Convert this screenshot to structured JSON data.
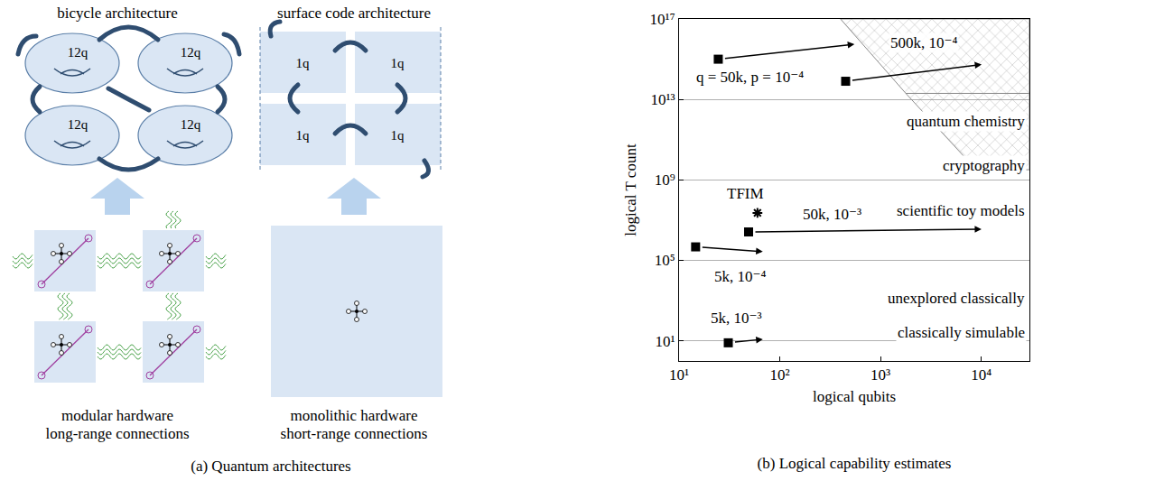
{
  "diagram": {
    "caption": "(a) Quantum architectures",
    "columns": [
      {
        "title": "bicycle architecture",
        "module_label": "12q",
        "hardware": [
          "modular hardware",
          "long-range connections"
        ]
      },
      {
        "title": "surface code architecture",
        "module_label": "1q",
        "hardware": [
          "monolithic hardware",
          "short-range connections"
        ]
      }
    ]
  },
  "chart_data": {
    "type": "scatter",
    "caption": "(b) Logical capability estimates",
    "x_label": "logical qubits",
    "y_label": "logical T count",
    "log": true,
    "grid": "y",
    "xlim": [
      10,
      30000
    ],
    "ylim": [
      1,
      1e+17
    ],
    "xticks": [
      {
        "value": 10,
        "label": "10¹"
      },
      {
        "value": 100,
        "label": "10²"
      },
      {
        "value": 1000,
        "label": "10³"
      },
      {
        "value": 10000,
        "label": "10⁴"
      }
    ],
    "yticks": [
      {
        "value": 10,
        "label": "10¹"
      },
      {
        "value": 100000,
        "label": "10⁵"
      },
      {
        "value": 1000000000,
        "label": "10⁹"
      },
      {
        "value": 10000000000000.0,
        "label": "10¹³"
      },
      {
        "value": 1e+17,
        "label": "10¹⁷"
      }
    ],
    "pairs": [
      {
        "label": "q = 50k, p = 10⁻⁴",
        "label_x": 51,
        "label_y": 130000000000000.0,
        "start": {
          "x": 24.5,
          "y": 1000000000000000.0,
          "marker": "square",
          "color": "#000000"
        },
        "end": {
          "x": 690,
          "y": 6300000000000000.0,
          "marker": "open ellipse",
          "color": "#2222dd"
        }
      },
      {
        "label": "500k, 10⁻⁴",
        "label_x": 2700,
        "label_y": 6300000000000000.0,
        "start": {
          "x": 450,
          "y": 80000000000000.0,
          "marker": "square",
          "color": "#000000"
        },
        "end": {
          "x": 12600,
          "y": 630000000000000.0,
          "marker": "open ellipse",
          "color": "#2222dd"
        }
      },
      {
        "label": "50k, 10⁻³",
        "label_x": 330,
        "label_y": 20000000.0,
        "start": {
          "x": 49,
          "y": 2600000.0,
          "marker": "square",
          "color": "#000000"
        },
        "end": {
          "x": 12600,
          "y": 3600000.0,
          "marker": "open ellipse",
          "color": "#2222dd"
        }
      },
      {
        "label": "5k, 10⁻⁴",
        "label_x": 40,
        "label_y": 16000,
        "start": {
          "x": 14.6,
          "y": 470000,
          "marker": "square",
          "color": "#000000"
        },
        "end": {
          "x": 85,
          "y": 250000,
          "marker": "ellipse",
          "color": "#ee1111"
        }
      },
      {
        "label": "5k, 10⁻³",
        "label_x": 37,
        "label_y": 130,
        "start": {
          "x": 30.8,
          "y": 8,
          "marker": "square",
          "color": "#000000"
        },
        "end": {
          "x": 85,
          "y": 13.5,
          "marker": "ellipse",
          "color": "#ee1111"
        }
      }
    ],
    "points": [
      {
        "text": "TFIM",
        "x": 60,
        "y": 23000000.0,
        "marker": "asterisk",
        "color": "#000000",
        "label_x": 46,
        "label_y": 210000000.0
      }
    ],
    "bands": [
      {
        "text": "quantum chemistry",
        "y": 800000000000.0
      },
      {
        "text": "cryptography",
        "y": 5000000000.0
      },
      {
        "text": "scientific toy models",
        "y": 30000000.0
      },
      {
        "text": "unexplored classically",
        "y": 1300
      },
      {
        "text": "classically simulable",
        "y": 25
      }
    ],
    "regions": [
      {
        "x": [
          400,
          1780,
          30000,
          30000,
          400
        ],
        "y": [
          1e+17,
          20000000000000.0,
          20000000000000.0,
          1e+17,
          1e+17
        ]
      },
      {
        "x": [
          1780,
          8900,
          30000,
          30000,
          1780
        ],
        "y": [
          20000000000000.0,
          3200000000.0,
          3200000000.0,
          20000000000000.0,
          20000000000000.0
        ]
      }
    ]
  }
}
